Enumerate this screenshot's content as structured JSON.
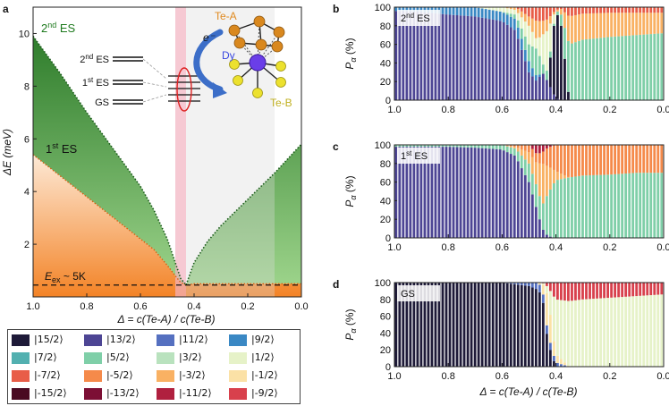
{
  "figure": {
    "panel_labels": [
      "a",
      "b",
      "c",
      "d"
    ],
    "panel_a": {
      "ylabel": "ΔE (meV)",
      "xlabel": "Δ = c(Te-A) / c(Te-B)",
      "xticks": [
        "1.0",
        "0.8",
        "0.6",
        "0.4",
        "0.2",
        "0.0"
      ],
      "yticks": [
        "2",
        "4",
        "6",
        "8",
        "10"
      ],
      "label_2nd_es_prefix": "2",
      "label_2nd_es_sup": "nd",
      "label_2nd_es_suffix": " ES",
      "label_1st_es_prefix": "1",
      "label_1st_es_sup": "st",
      "label_1st_es_suffix": " ES",
      "eex_prefix": "E",
      "eex_sub": "ex",
      "eex_suffix": " ~ 5K",
      "level_labels": [
        "2nd ES",
        "1st ES",
        "GS"
      ],
      "inset_te_a": "Te-A",
      "inset_te_b": "Te-B",
      "inset_dy": "Dy",
      "inset_electron": "e⁻"
    },
    "right_panels": [
      {
        "label": "b",
        "tag": "2nd ES",
        "ylabel": "Pα (%)"
      },
      {
        "label": "c",
        "tag": "1st ES",
        "ylabel": "Pα (%)"
      },
      {
        "label": "d",
        "tag": "GS",
        "ylabel": "Pα (%)"
      }
    ],
    "right_yticks": [
      "0",
      "20",
      "40",
      "60",
      "80",
      "100"
    ],
    "right_xticks": [
      "1.0",
      "0.8",
      "0.6",
      "0.4",
      "0.2",
      "0.0"
    ],
    "right_xlabel": "Δ = c(Te-A) / c(Te-B)"
  },
  "legend": [
    {
      "label": "|15/2⟩",
      "color": "#1e1a38"
    },
    {
      "label": "|13/2⟩",
      "color": "#4d4594"
    },
    {
      "label": "|11/2⟩",
      "color": "#5570c0"
    },
    {
      "label": "|9/2⟩",
      "color": "#3a88c4"
    },
    {
      "label": "|7/2⟩",
      "color": "#52b0b0"
    },
    {
      "label": "|5/2⟩",
      "color": "#7fcfa8"
    },
    {
      "label": "|3/2⟩",
      "color": "#b9e2be"
    },
    {
      "label": "|1/2⟩",
      "color": "#e6f2c8"
    },
    {
      "label": "|-7/2⟩",
      "color": "#e85d48"
    },
    {
      "label": "|-5/2⟩",
      "color": "#f58a4a"
    },
    {
      "label": "|-3/2⟩",
      "color": "#f9b163"
    },
    {
      "label": "|-1/2⟩",
      "color": "#fbe1a6"
    },
    {
      "label": "|-15/2⟩",
      "color": "#4a0a22"
    },
    {
      "label": "|-13/2⟩",
      "color": "#7c0f35"
    },
    {
      "label": "|-11/2⟩",
      "color": "#b0203f"
    },
    {
      "label": "|-9/2⟩",
      "color": "#d8404c"
    }
  ],
  "chart_data": [
    {
      "type": "area",
      "panel": "a",
      "title": "",
      "xlabel": "Δ = c(Te-A) / c(Te-B)",
      "ylabel": "ΔE (meV)",
      "xlim": [
        1.0,
        0.0
      ],
      "ylim": [
        0,
        11
      ],
      "x": [
        1.0,
        0.9,
        0.8,
        0.7,
        0.6,
        0.55,
        0.5,
        0.47,
        0.45,
        0.43,
        0.4,
        0.35,
        0.3,
        0.2,
        0.1,
        0.0
      ],
      "series": [
        {
          "name": "2nd ES",
          "color": "#2e8a2e",
          "values": [
            9.9,
            8.5,
            7.0,
            5.6,
            4.2,
            3.3,
            2.2,
            1.3,
            0.7,
            0.45,
            1.3,
            2.1,
            2.7,
            3.7,
            4.7,
            5.8
          ]
        },
        {
          "name": "1st ES",
          "color": "#f37a1f",
          "values": [
            5.4,
            4.6,
            3.8,
            3.0,
            2.2,
            1.8,
            1.2,
            0.8,
            0.55,
            0.45,
            0.5,
            0.5,
            0.5,
            0.5,
            0.5,
            0.5
          ]
        }
      ],
      "annotations": {
        "eex_line_meV": 0.45,
        "highlight_band": [
          0.47,
          0.43
        ],
        "gray_region": [
          0.43,
          0.1
        ]
      }
    },
    {
      "type": "bar",
      "panel": "b",
      "stacked": true,
      "xlabel": "Δ = c(Te-A) / c(Te-B)",
      "ylabel": "Pα (%)",
      "ylim": [
        0,
        100
      ],
      "x": [
        1.0,
        0.9,
        0.8,
        0.7,
        0.6,
        0.55,
        0.5,
        0.47,
        0.45,
        0.43,
        0.4,
        0.38,
        0.35,
        0.3,
        0.2,
        0.1,
        0.0
      ],
      "series": [
        {
          "name": "|13/2⟩",
          "values": [
            96,
            95,
            92,
            90,
            85,
            75,
            30,
            20,
            30,
            20,
            2,
            0,
            0,
            0,
            0,
            0,
            0
          ]
        },
        {
          "name": "|9/2⟩",
          "values": [
            4,
            5,
            8,
            10,
            10,
            12,
            12,
            5,
            0,
            0,
            0,
            0,
            0,
            0,
            0,
            0,
            0
          ]
        },
        {
          "name": "|15/2⟩",
          "values": [
            0,
            0,
            0,
            0,
            0,
            0,
            0,
            0,
            0,
            0,
            95,
            80,
            0,
            0,
            0,
            0,
            0
          ]
        },
        {
          "name": "|5/2⟩",
          "values": [
            0,
            0,
            0,
            0,
            0,
            5,
            18,
            30,
            10,
            10,
            0,
            12,
            60,
            65,
            68,
            70,
            72
          ]
        },
        {
          "name": "|1/2⟩",
          "values": [
            0,
            0,
            0,
            0,
            5,
            5,
            20,
            10,
            30,
            45,
            0,
            0,
            0,
            0,
            0,
            0,
            0
          ]
        },
        {
          "name": "|-3/2⟩",
          "values": [
            0,
            0,
            0,
            0,
            0,
            3,
            10,
            20,
            15,
            12,
            0,
            6,
            30,
            28,
            26,
            24,
            22
          ]
        },
        {
          "name": "|-7/2⟩",
          "values": [
            0,
            0,
            0,
            0,
            0,
            0,
            10,
            15,
            15,
            13,
            3,
            2,
            10,
            7,
            6,
            6,
            6
          ]
        }
      ]
    },
    {
      "type": "bar",
      "panel": "c",
      "stacked": true,
      "xlabel": "Δ = c(Te-A) / c(Te-B)",
      "ylabel": "Pα (%)",
      "ylim": [
        0,
        100
      ],
      "x": [
        1.0,
        0.9,
        0.8,
        0.7,
        0.6,
        0.55,
        0.5,
        0.47,
        0.45,
        0.43,
        0.4,
        0.35,
        0.3,
        0.2,
        0.1,
        0.0
      ],
      "series": [
        {
          "name": "|13/2⟩",
          "values": [
            98,
            98,
            98,
            97,
            95,
            88,
            60,
            30,
            10,
            2,
            0,
            0,
            0,
            0,
            0,
            0
          ]
        },
        {
          "name": "|5/2⟩",
          "values": [
            2,
            2,
            2,
            3,
            5,
            8,
            20,
            25,
            25,
            45,
            62,
            65,
            67,
            68,
            70,
            70
          ]
        },
        {
          "name": "|-3/2⟩",
          "values": [
            0,
            0,
            0,
            0,
            0,
            2,
            12,
            25,
            45,
            30,
            10,
            0,
            0,
            0,
            0,
            0
          ]
        },
        {
          "name": "|-5/2⟩",
          "values": [
            0,
            0,
            0,
            0,
            0,
            2,
            8,
            10,
            12,
            20,
            28,
            35,
            33,
            32,
            30,
            30
          ]
        },
        {
          "name": "|-11/2⟩",
          "values": [
            0,
            0,
            0,
            0,
            0,
            0,
            0,
            10,
            8,
            3,
            0,
            0,
            0,
            0,
            0,
            0
          ]
        }
      ]
    },
    {
      "type": "bar",
      "panel": "d",
      "stacked": true,
      "xlabel": "Δ = c(Te-A) / c(Te-B)",
      "ylabel": "Pα (%)",
      "ylim": [
        0,
        100
      ],
      "x": [
        1.0,
        0.9,
        0.8,
        0.7,
        0.6,
        0.55,
        0.5,
        0.47,
        0.45,
        0.43,
        0.4,
        0.35,
        0.3,
        0.2,
        0.1,
        0.0
      ],
      "series": [
        {
          "name": "|15/2⟩",
          "values": [
            100,
            100,
            100,
            100,
            100,
            98,
            96,
            92,
            85,
            30,
            0,
            0,
            0,
            0,
            0,
            0
          ]
        },
        {
          "name": "|11/2⟩",
          "values": [
            0,
            0,
            0,
            0,
            0,
            2,
            4,
            8,
            10,
            10,
            5,
            0,
            0,
            0,
            0,
            0
          ]
        },
        {
          "name": "|-1/2⟩",
          "values": [
            0,
            0,
            0,
            0,
            0,
            0,
            0,
            0,
            5,
            45,
            10,
            0,
            0,
            0,
            0,
            0
          ]
        },
        {
          "name": "|1/2⟩",
          "values": [
            0,
            0,
            0,
            0,
            0,
            0,
            0,
            0,
            0,
            10,
            65,
            78,
            80,
            82,
            84,
            86
          ]
        },
        {
          "name": "|-9/2⟩",
          "values": [
            0,
            0,
            0,
            0,
            0,
            0,
            0,
            0,
            0,
            5,
            20,
            22,
            20,
            18,
            16,
            14
          ]
        }
      ]
    }
  ]
}
